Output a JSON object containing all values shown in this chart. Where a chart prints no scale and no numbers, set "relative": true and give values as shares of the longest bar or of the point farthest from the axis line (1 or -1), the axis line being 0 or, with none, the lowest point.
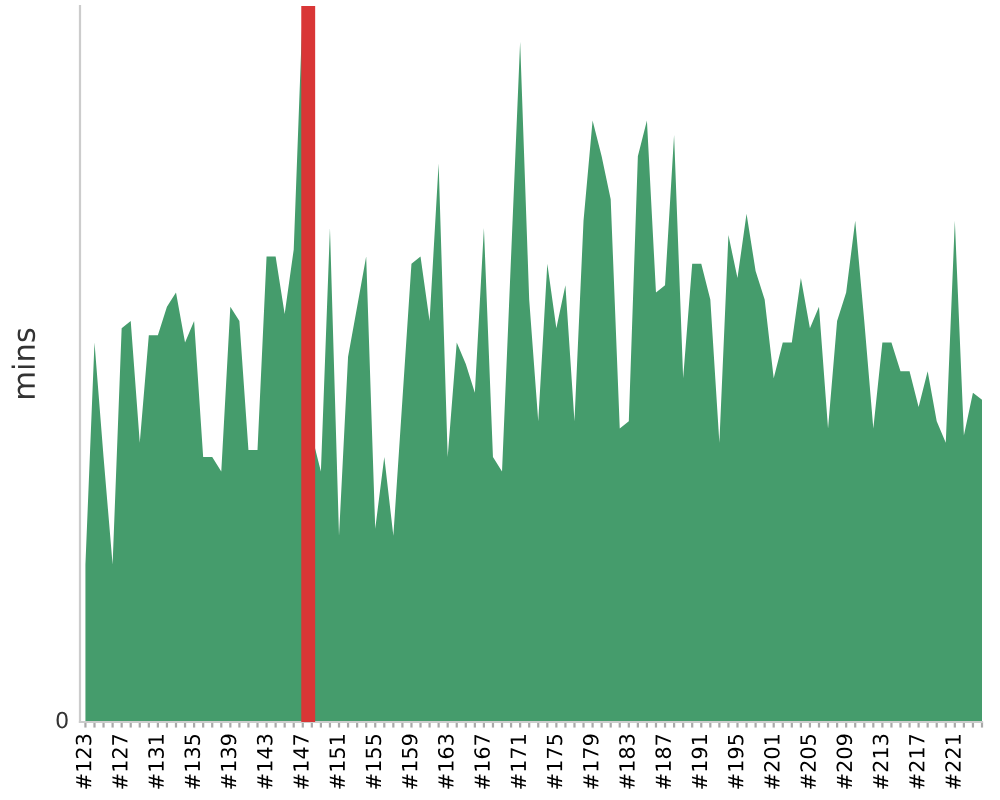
{
  "chart_data": {
    "type": "area",
    "relative": true,
    "ylabel": "mins",
    "color": "#459c6c",
    "categories": [
      "#123",
      null,
      null,
      null,
      "#127",
      null,
      null,
      null,
      "#131",
      null,
      null,
      null,
      "#135",
      null,
      null,
      null,
      "#139",
      null,
      null,
      null,
      "#143",
      null,
      null,
      null,
      "#147",
      null,
      null,
      null,
      "#151",
      null,
      null,
      null,
      "#155",
      null,
      null,
      null,
      "#159",
      null,
      null,
      null,
      "#163",
      null,
      null,
      null,
      "#167",
      null,
      null,
      null,
      "#171",
      null,
      null,
      null,
      "#175",
      null,
      null,
      null,
      "#179",
      null,
      null,
      null,
      "#183",
      null,
      null,
      null,
      "#187",
      null,
      null,
      null,
      "#191",
      null,
      null,
      null,
      "#195",
      null,
      null,
      null,
      "#201",
      null,
      null,
      null,
      "#205",
      null,
      null,
      null,
      "#209",
      null,
      null,
      null,
      "#213",
      null,
      null,
      null,
      "#217",
      null,
      null,
      null,
      "#221",
      null,
      null,
      null
    ],
    "values": [
      0.22,
      0.53,
      0.37,
      0.22,
      0.55,
      0.56,
      0.39,
      0.54,
      0.54,
      0.58,
      0.6,
      0.53,
      0.56,
      0.37,
      0.37,
      0.35,
      0.58,
      0.56,
      0.38,
      0.38,
      0.65,
      0.65,
      0.57,
      0.66,
      1.0,
      0.4,
      0.35,
      0.69,
      0.26,
      0.51,
      0.58,
      0.65,
      0.27,
      0.37,
      0.26,
      0.45,
      0.64,
      0.65,
      0.56,
      0.78,
      0.37,
      0.53,
      0.5,
      0.46,
      0.69,
      0.37,
      0.35,
      0.65,
      0.95,
      0.59,
      0.42,
      0.64,
      0.55,
      0.61,
      0.42,
      0.7,
      0.84,
      0.79,
      0.73,
      0.41,
      0.42,
      0.79,
      0.84,
      0.6,
      0.61,
      0.82,
      0.48,
      0.64,
      0.64,
      0.59,
      0.39,
      0.68,
      0.62,
      0.71,
      0.63,
      0.59,
      0.48,
      0.53,
      0.53,
      0.62,
      0.55,
      0.58,
      0.41,
      0.56,
      0.6,
      0.7,
      0.56,
      0.41,
      0.53,
      0.53,
      0.49,
      0.49,
      0.44,
      0.49,
      0.42,
      0.39,
      0.7,
      0.4,
      0.46,
      0.45
    ],
    "annotations": [
      "0"
    ],
    "grid": false,
    "legend": false
  }
}
